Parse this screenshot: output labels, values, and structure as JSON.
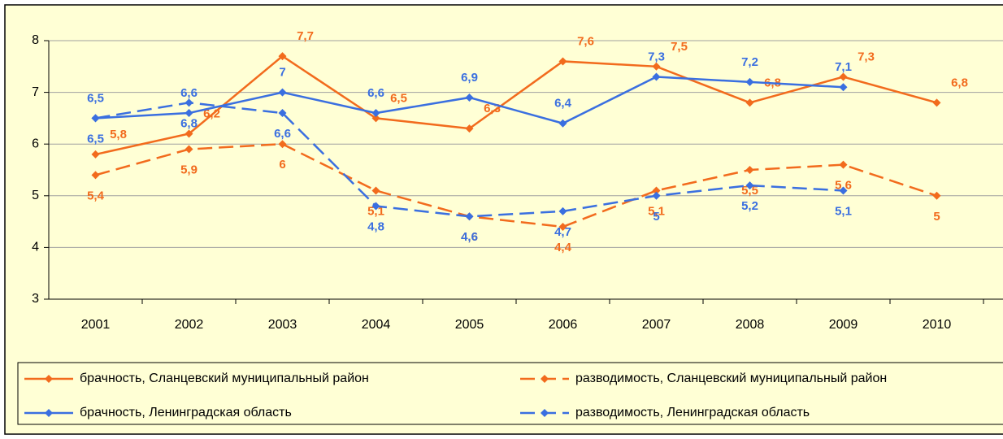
{
  "chart_data": {
    "type": "line",
    "categories": [
      "2001",
      "2002",
      "2003",
      "2004",
      "2005",
      "2006",
      "2007",
      "2008",
      "2009",
      "2010"
    ],
    "ylim": [
      3,
      8
    ],
    "yticks": [
      3,
      4,
      5,
      6,
      7,
      8
    ],
    "grid": true,
    "legend": "bottom",
    "series": [
      {
        "name": "брачность, Сланцевский муниципальный район",
        "color": "#f26b1d",
        "dash": false,
        "values": [
          5.8,
          6.2,
          7.7,
          6.5,
          6.3,
          7.6,
          7.5,
          6.8,
          7.3,
          6.8
        ],
        "value_labels": [
          "5,8",
          "6,2",
          "7,7",
          "6,5",
          "6,3",
          "7,6",
          "7,5",
          "6,8",
          "7,3",
          "6,8"
        ]
      },
      {
        "name": "разводимость, Сланцевский муниципальный район",
        "color": "#f26b1d",
        "dash": true,
        "values": [
          5.4,
          5.9,
          6,
          5.1,
          4.6,
          4.4,
          5.1,
          5.5,
          5.6,
          5
        ],
        "value_labels": [
          "5,4",
          "5,9",
          "6",
          "5,1",
          "4,6",
          "4,4",
          "5,1",
          "5,5",
          "5,6",
          "5"
        ]
      },
      {
        "name": "брачность, Ленинградская область",
        "color": "#3a6fe0",
        "dash": false,
        "values": [
          6.5,
          6.6,
          7,
          6.6,
          6.9,
          6.4,
          7.3,
          7.2,
          7.1,
          null
        ],
        "value_labels": [
          "6,5",
          "6,6",
          "7",
          "6,6",
          "6,9",
          "6,4",
          "7,3",
          "7,2",
          "7,1",
          null
        ]
      },
      {
        "name": "разводимость, Ленинградская область",
        "color": "#3a6fe0",
        "dash": true,
        "values": [
          6.5,
          6.8,
          6.6,
          4.8,
          4.6,
          4.7,
          5,
          5.2,
          5.1,
          null
        ],
        "value_labels": [
          "6,5",
          "6,8",
          "6,6",
          "4,8",
          "4,6",
          "4,7",
          "5",
          "5,2",
          "5,1",
          null
        ]
      }
    ]
  }
}
